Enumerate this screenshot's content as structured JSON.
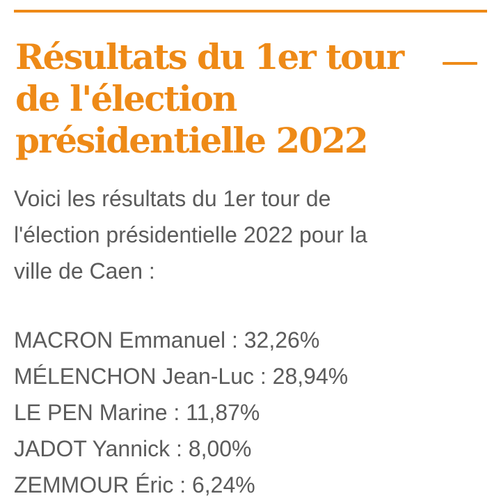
{
  "colors": {
    "accent": "#ee8a17",
    "text": "#5b5b5b"
  },
  "section": {
    "title": "Résultats du 1er tour\nde l'élection\nprésidentielle 2022",
    "toggle_icon": "minus-icon"
  },
  "intro_text": "Voici les résultats du 1er tour de\nl'élection présidentielle 2022 pour la\nville de Caen :",
  "results": [
    {
      "label": "MACRON Emmanuel : 32,26%"
    },
    {
      "label": "MÉLENCHON Jean-Luc : 28,94%"
    },
    {
      "label": "LE PEN Marine : 11,87%"
    },
    {
      "label": "JADOT Yannick : 8,00%"
    },
    {
      "label": "ZEMMOUR Éric : 6,24%"
    }
  ]
}
